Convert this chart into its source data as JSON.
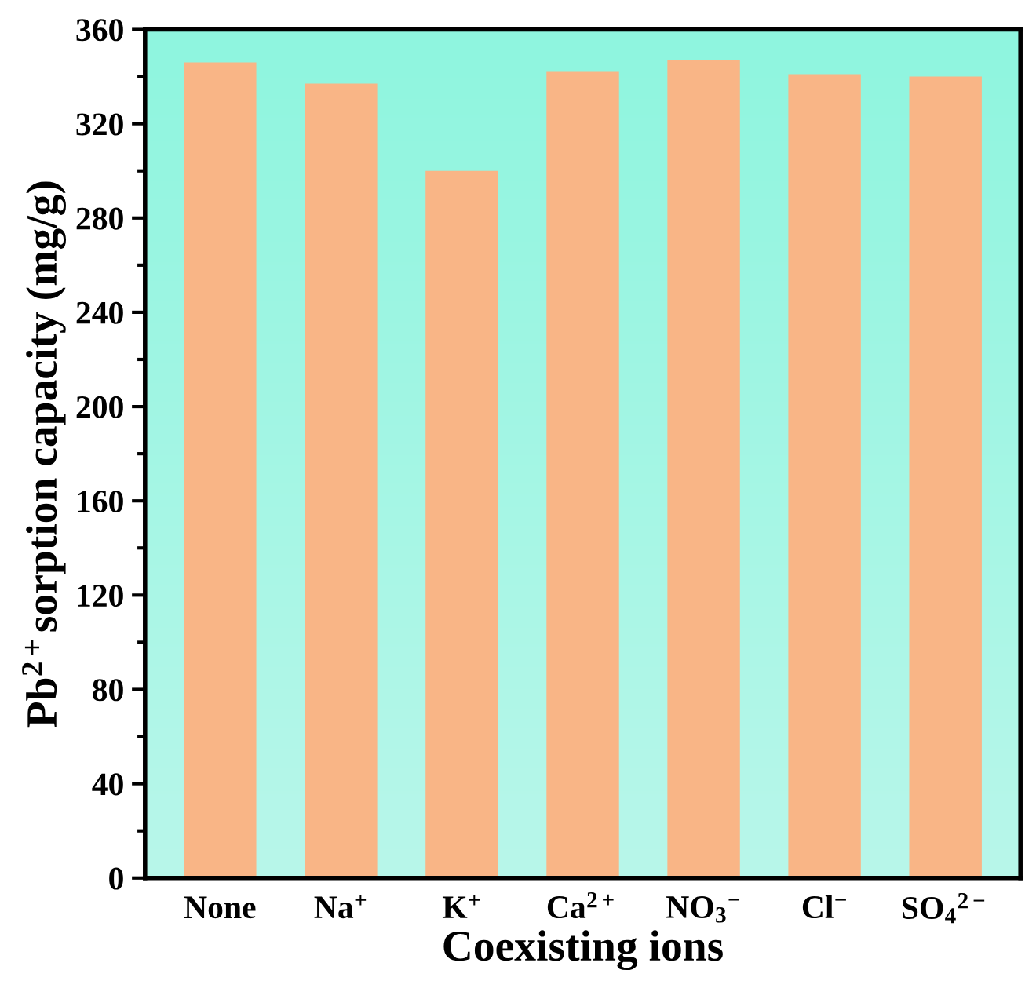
{
  "chart_data": {
    "type": "bar",
    "xlabel": "Coexisting ions",
    "ylabel": "Pb$^{2+}$sorption capacity (mg/g)",
    "categories": [
      "None",
      "Na$^{+}$",
      "K$^{+}$",
      "Ca$^{2+}$",
      "NO$_{3}$$^{−}$",
      "Cl$^{−}$",
      "SO$_{4}$$^{2−}$"
    ],
    "values": [
      346,
      337,
      300,
      342,
      347,
      341,
      340
    ],
    "color": "#f9b586",
    "ylim": [
      0,
      360
    ],
    "yticks": [
      0,
      40,
      80,
      120,
      160,
      200,
      240,
      280,
      320,
      360
    ],
    "grid": false
  }
}
